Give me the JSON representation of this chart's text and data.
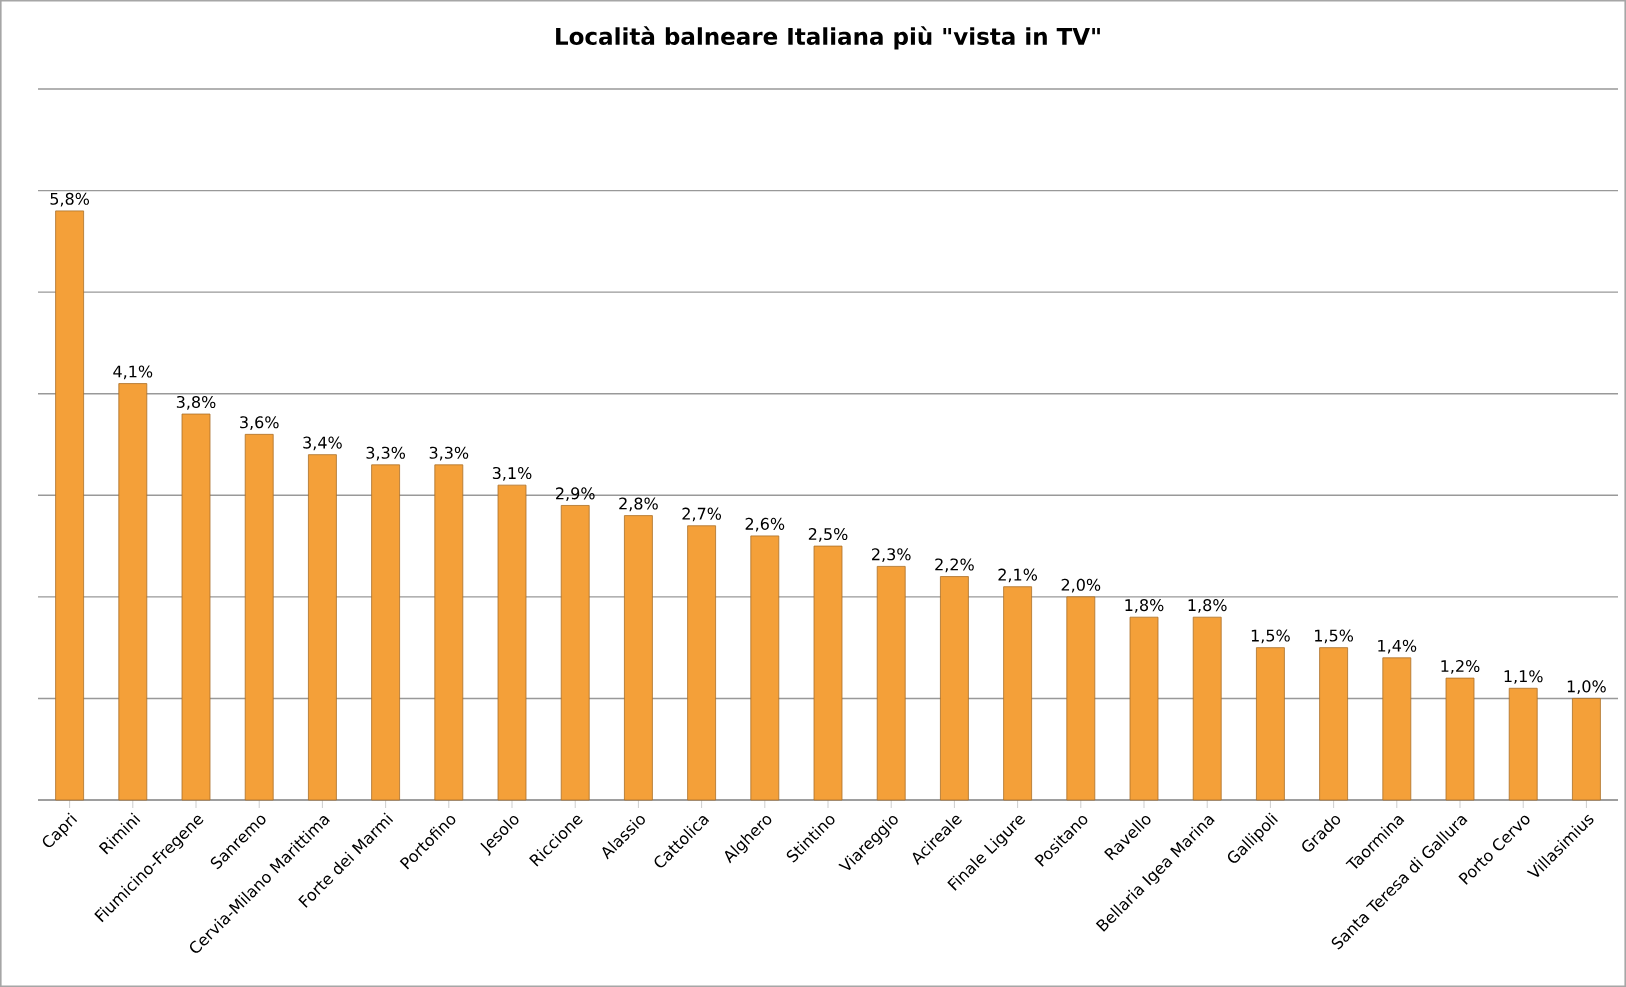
{
  "chart_data": {
    "type": "bar",
    "title": "Località balneare Italiana più \"vista in TV\"",
    "categories": [
      "Capri",
      "Rimini",
      "Fiumicino-Fregene",
      "Sanremo",
      "Cervia-Milano Marittima",
      "Forte dei Marmi",
      "Portofino",
      "Jesolo",
      "Riccione",
      "Alassio",
      "Cattolica",
      "Alghero",
      "Stintino",
      "Viareggio",
      "Acireale",
      "Finale Ligure",
      "Positano",
      "Ravello",
      "Bellaria Igea Marina",
      "Gallipoli",
      "Grado",
      "Taormina",
      "Santa Teresa di Gallura",
      "Porto Cervo",
      "Villasimius"
    ],
    "values": [
      5.8,
      4.1,
      3.8,
      3.6,
      3.4,
      3.3,
      3.3,
      3.1,
      2.9,
      2.8,
      2.7,
      2.6,
      2.5,
      2.3,
      2.2,
      2.1,
      2.0,
      1.8,
      1.8,
      1.5,
      1.5,
      1.4,
      1.2,
      1.1,
      1.0
    ],
    "value_labels": [
      "5,8%",
      "4,1%",
      "3,8%",
      "3,6%",
      "3,4%",
      "3,3%",
      "3,3%",
      "3,1%",
      "2,9%",
      "2,8%",
      "2,7%",
      "2,6%",
      "2,5%",
      "2,3%",
      "2,2%",
      "2,1%",
      "2,0%",
      "1,8%",
      "1,8%",
      "1,5%",
      "1,5%",
      "1,4%",
      "1,2%",
      "1,1%",
      "1,0%"
    ],
    "color": "#f4a039",
    "ylim": [
      0,
      7
    ],
    "yticks": [
      {
        "value": 0,
        "label": null
      },
      {
        "value": 1,
        "label": null
      },
      {
        "value": 2,
        "label": null
      },
      {
        "value": 3,
        "label": null
      },
      {
        "value": 4,
        "label": null
      },
      {
        "value": 5,
        "label": null
      },
      {
        "value": 6,
        "label": null
      },
      {
        "value": 7,
        "label": null
      }
    ],
    "grid": "y",
    "tick_labels": "x"
  }
}
